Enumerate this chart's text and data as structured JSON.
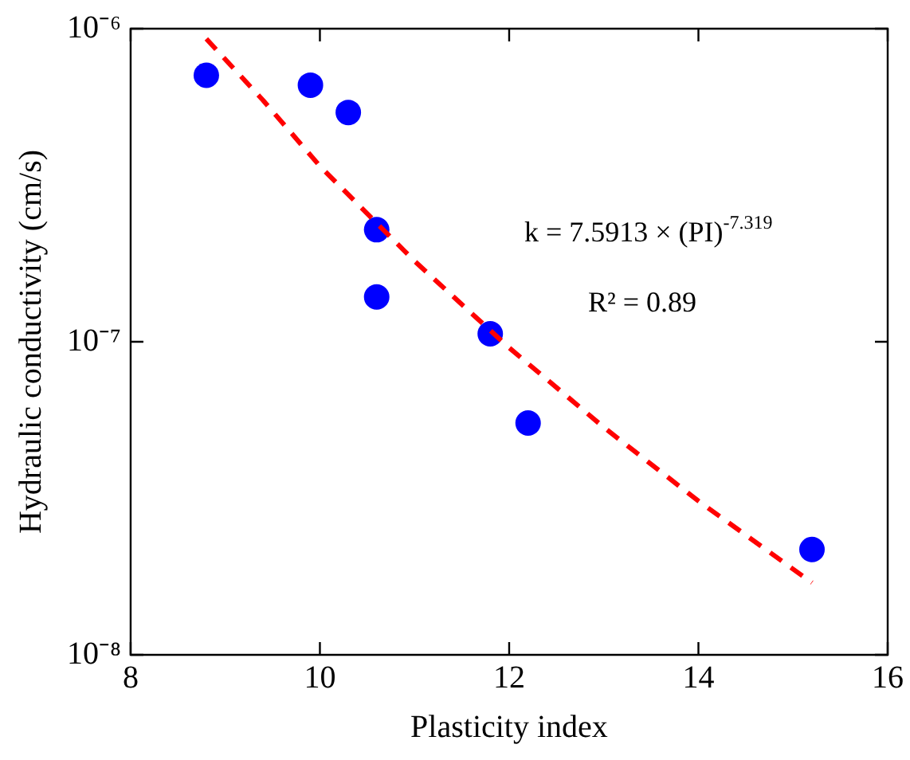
{
  "chart_data": {
    "type": "scatter",
    "xlabel": "Plasticity index",
    "ylabel": "Hydraulic conductivity (cm/s)",
    "xlim": [
      8,
      16
    ],
    "xticks": [
      8,
      10,
      12,
      14,
      16
    ],
    "ylim": [
      1e-08,
      1e-06
    ],
    "yticks": [
      {
        "value": 1e-08,
        "label": "10⁻⁸"
      },
      {
        "value": 1e-07,
        "label": "10⁻⁷"
      },
      {
        "value": 1e-06,
        "label": "10⁻⁶"
      }
    ],
    "log": true,
    "grid": false,
    "legend": false,
    "marker": "circle",
    "series": [
      {
        "color": "#0000ff",
        "x": [
          8.8,
          9.9,
          10.3,
          10.6,
          10.6,
          11.8,
          12.2,
          15.2
        ],
        "values": [
          7.1e-07,
          6.6e-07,
          5.4e-07,
          2.28e-07,
          1.39e-07,
          1.06e-07,
          5.5e-08,
          2.17e-08
        ]
      },
      {
        "type": "line",
        "color": "#ff0000",
        "line_style": "dashed",
        "marker": "none",
        "x": [
          8.8,
          9.4,
          10,
          11,
          12,
          13,
          14,
          15.2
        ],
        "values": [
          9.28e-07,
          5.9e-07,
          3.64e-07,
          1.81e-07,
          9.57e-08,
          5.33e-08,
          3.1e-08,
          1.7e-08
        ]
      }
    ],
    "annotations": [
      "k = 7.5913 × (PI)$^{-7.319}$",
      "R² = 0.89"
    ]
  }
}
